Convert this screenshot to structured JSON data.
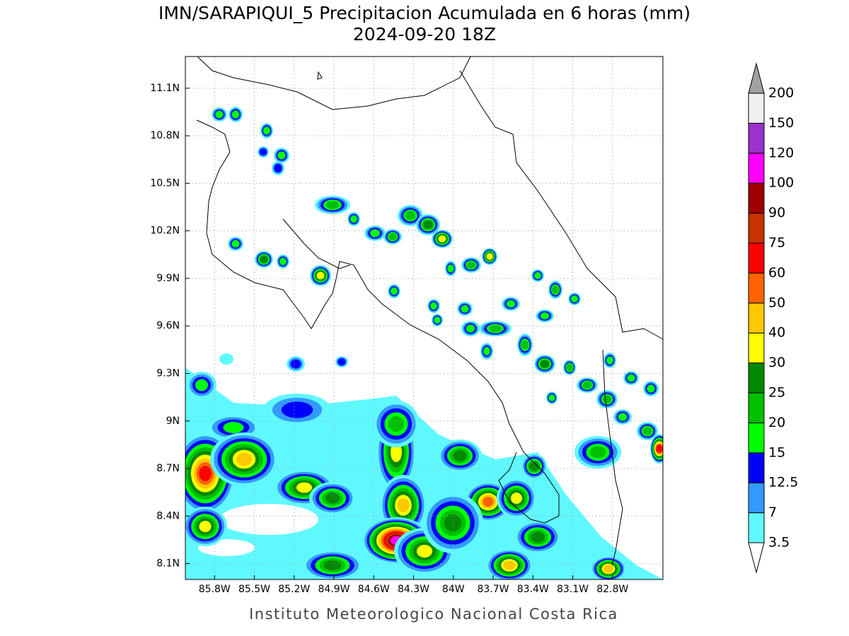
{
  "header": {
    "title": "IMN/SARAPIQUI_5 Precipitacion Acumulada en 6 horas (mm)",
    "subtitle": "2024-09-20 18Z"
  },
  "map": {
    "xlim": [
      -86.02,
      -82.42
    ],
    "ylim": [
      8.0,
      11.3
    ],
    "xticks": [
      {
        "value": -85.8,
        "label": "85.8W"
      },
      {
        "value": -85.5,
        "label": "85.5W"
      },
      {
        "value": -85.2,
        "label": "85.2W"
      },
      {
        "value": -84.9,
        "label": "84.9W"
      },
      {
        "value": -84.6,
        "label": "84.6W"
      },
      {
        "value": -84.3,
        "label": "84.3W"
      },
      {
        "value": -84.0,
        "label": "84W"
      },
      {
        "value": -83.7,
        "label": "83.7W"
      },
      {
        "value": -83.4,
        "label": "83.4W"
      },
      {
        "value": -83.1,
        "label": "83.1W"
      },
      {
        "value": -82.8,
        "label": "82.8W"
      }
    ],
    "yticks": [
      {
        "value": 8.1,
        "label": "8.1N"
      },
      {
        "value": 8.4,
        "label": "8.4N"
      },
      {
        "value": 8.7,
        "label": "8.7N"
      },
      {
        "value": 9.0,
        "label": "9N"
      },
      {
        "value": 9.3,
        "label": "9.3N"
      },
      {
        "value": 9.6,
        "label": "9.6N"
      },
      {
        "value": 9.9,
        "label": "9.9N"
      },
      {
        "value": 10.2,
        "label": "10.2N"
      },
      {
        "value": 10.5,
        "label": "10.5N"
      },
      {
        "value": 10.8,
        "label": "10.8N"
      },
      {
        "value": 11.1,
        "label": "11.1N"
      }
    ],
    "grid": true
  },
  "colorbar": {
    "levels": [
      3.5,
      7,
      12.5,
      15,
      20,
      25,
      30,
      40,
      50,
      60,
      75,
      90,
      100,
      120,
      150,
      200
    ],
    "colors": [
      "#60f8ff",
      "#3399ff",
      "#0000ff",
      "#00ff00",
      "#00c000",
      "#008800",
      "#ffff00",
      "#ffc800",
      "#ff6400",
      "#ff0000",
      "#c83200",
      "#a00000",
      "#ff00ff",
      "#9933cc",
      "#f0f0f0"
    ],
    "under_color": "#ffffff",
    "over_color": "#a0a0a0"
  },
  "footer": "Instituto Meteorologico Nacional Costa Rica"
}
